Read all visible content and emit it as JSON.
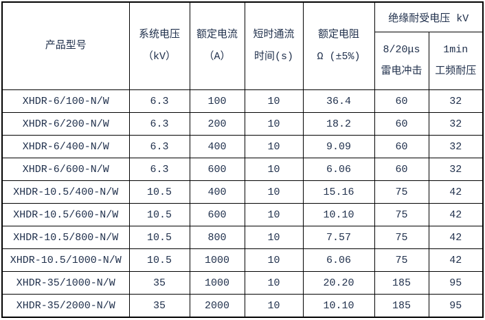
{
  "page": {
    "background_color": "#ffffff",
    "grid_border_color": "#000000",
    "text_color": "#20304c"
  },
  "table": {
    "header": {
      "product_model": "产品型号",
      "system_voltage_l1": "系统电压",
      "system_voltage_l2": "（kV）",
      "rated_current_l1": "额定电流",
      "rated_current_l2": "（A）",
      "short_time_l1": "短时通流",
      "short_time_l2": "时间(s)",
      "rated_resistance_l1": "额定电阻",
      "rated_resistance_l2": "Ω (±5%)",
      "insulation_group": "绝缘耐受电压 kV",
      "lightning_l1": "8/20μs",
      "lightning_l2": "雷电冲击",
      "power_freq_l1": "1min",
      "power_freq_l2": "工频耐压"
    },
    "rows": [
      [
        "XHDR-6/100-N/W",
        "6.3",
        "100",
        "10",
        "36.4",
        "60",
        "32"
      ],
      [
        "XHDR-6/200-N/W",
        "6.3",
        "200",
        "10",
        "18.2",
        "60",
        "32"
      ],
      [
        "XHDR-6/400-N/W",
        "6.3",
        "400",
        "10",
        "9.09",
        "60",
        "32"
      ],
      [
        "XHDR-6/600-N/W",
        "6.3",
        "600",
        "10",
        "6.06",
        "60",
        "32"
      ],
      [
        "XHDR-10.5/400-N/W",
        "10.5",
        "400",
        "10",
        "15.16",
        "75",
        "42"
      ],
      [
        "XHDR-10.5/600-N/W",
        "10.5",
        "600",
        "10",
        "10.10",
        "75",
        "42"
      ],
      [
        "XHDR-10.5/800-N/W",
        "10.5",
        "800",
        "10",
        "7.57",
        "75",
        "42"
      ],
      [
        "XHDR-10.5/1000-N/W",
        "10.5",
        "1000",
        "10",
        "6.06",
        "75",
        "42"
      ],
      [
        "XHDR-35/1000-N/W",
        "35",
        "1000",
        "10",
        "20.20",
        "185",
        "95"
      ],
      [
        "XHDR-35/2000-N/W",
        "35",
        "2000",
        "10",
        "10.10",
        "185",
        "95"
      ]
    ]
  }
}
